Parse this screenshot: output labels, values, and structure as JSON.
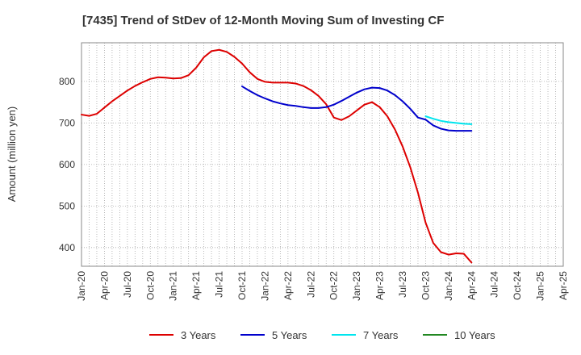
{
  "chart_data": {
    "type": "line",
    "title": "[7435]  Trend of StDev of 12-Month Moving Sum of Investing CF",
    "xlabel": "",
    "ylabel": "Amount (million yen)",
    "ylim": [
      355,
      893
    ],
    "xlim": [
      "Jan-20",
      "Apr-25"
    ],
    "yticks": [
      400,
      500,
      600,
      700,
      800
    ],
    "xticks": [
      "Jan-20",
      "Apr-20",
      "Jul-20",
      "Oct-20",
      "Jan-21",
      "Apr-21",
      "Jul-21",
      "Oct-21",
      "Jan-22",
      "Apr-22",
      "Jul-22",
      "Oct-22",
      "Jan-23",
      "Apr-23",
      "Jul-23",
      "Oct-23",
      "Jan-24",
      "Apr-24",
      "Jul-24",
      "Oct-24",
      "Jan-25",
      "Apr-25"
    ],
    "grid": true,
    "legend_position": "bottom",
    "series": [
      {
        "name": "3 Years",
        "color": "#dd0000",
        "points": [
          [
            "Jan-20",
            720
          ],
          [
            "Feb-20",
            717
          ],
          [
            "Mar-20",
            722
          ],
          [
            "Apr-20",
            737
          ],
          [
            "May-20",
            752
          ],
          [
            "Jun-20",
            765
          ],
          [
            "Jul-20",
            778
          ],
          [
            "Aug-20",
            789
          ],
          [
            "Sep-20",
            798
          ],
          [
            "Oct-20",
            806
          ],
          [
            "Nov-20",
            810
          ],
          [
            "Dec-20",
            809
          ],
          [
            "Jan-21",
            807
          ],
          [
            "Feb-21",
            808
          ],
          [
            "Mar-21",
            815
          ],
          [
            "Apr-21",
            833
          ],
          [
            "May-21",
            858
          ],
          [
            "Jun-21",
            873
          ],
          [
            "Jul-21",
            876
          ],
          [
            "Aug-21",
            871
          ],
          [
            "Sep-21",
            859
          ],
          [
            "Oct-21",
            843
          ],
          [
            "Nov-21",
            822
          ],
          [
            "Dec-21",
            806
          ],
          [
            "Jan-22",
            799
          ],
          [
            "Feb-22",
            797
          ],
          [
            "Mar-22",
            797
          ],
          [
            "Apr-22",
            797
          ],
          [
            "May-22",
            795
          ],
          [
            "Jun-22",
            789
          ],
          [
            "Jul-22",
            779
          ],
          [
            "Aug-22",
            765
          ],
          [
            "Sep-22",
            745
          ],
          [
            "Oct-22",
            713
          ],
          [
            "Nov-22",
            707
          ],
          [
            "Dec-22",
            716
          ],
          [
            "Jan-23",
            730
          ],
          [
            "Feb-23",
            744
          ],
          [
            "Mar-23",
            750
          ],
          [
            "Apr-23",
            738
          ],
          [
            "May-23",
            716
          ],
          [
            "Jun-23",
            684
          ],
          [
            "Jul-23",
            643
          ],
          [
            "Aug-23",
            593
          ],
          [
            "Sep-23",
            532
          ],
          [
            "Oct-23",
            460
          ],
          [
            "Nov-23",
            411
          ],
          [
            "Dec-23",
            389
          ],
          [
            "Jan-24",
            383
          ],
          [
            "Feb-24",
            386
          ],
          [
            "Mar-24",
            385
          ],
          [
            "Apr-24",
            364
          ]
        ]
      },
      {
        "name": "5 Years",
        "color": "#0000cc",
        "points": [
          [
            "Oct-21",
            788
          ],
          [
            "Nov-21",
            777
          ],
          [
            "Dec-21",
            767
          ],
          [
            "Jan-22",
            759
          ],
          [
            "Feb-22",
            752
          ],
          [
            "Mar-22",
            747
          ],
          [
            "Apr-22",
            743
          ],
          [
            "May-22",
            741
          ],
          [
            "Jun-22",
            738
          ],
          [
            "Jul-22",
            736
          ],
          [
            "Aug-22",
            736
          ],
          [
            "Sep-22",
            738
          ],
          [
            "Oct-22",
            744
          ],
          [
            "Nov-22",
            753
          ],
          [
            "Dec-22",
            763
          ],
          [
            "Jan-23",
            773
          ],
          [
            "Feb-23",
            781
          ],
          [
            "Mar-23",
            785
          ],
          [
            "Apr-23",
            784
          ],
          [
            "May-23",
            778
          ],
          [
            "Jun-23",
            767
          ],
          [
            "Jul-23",
            752
          ],
          [
            "Aug-23",
            734
          ],
          [
            "Sep-23",
            713
          ],
          [
            "Oct-23",
            708
          ],
          [
            "Nov-23",
            694
          ],
          [
            "Dec-23",
            686
          ],
          [
            "Jan-24",
            682
          ],
          [
            "Feb-24",
            681
          ],
          [
            "Mar-24",
            681
          ],
          [
            "Apr-24",
            681
          ]
        ]
      },
      {
        "name": "7 Years",
        "color": "#00e5ee",
        "points": [
          [
            "Oct-23",
            716
          ],
          [
            "Nov-23",
            710
          ],
          [
            "Dec-23",
            705
          ],
          [
            "Jan-24",
            702
          ],
          [
            "Feb-24",
            700
          ],
          [
            "Mar-24",
            698
          ],
          [
            "Apr-24",
            697
          ]
        ]
      },
      {
        "name": "10 Years",
        "color": "#228822",
        "points": []
      }
    ]
  }
}
